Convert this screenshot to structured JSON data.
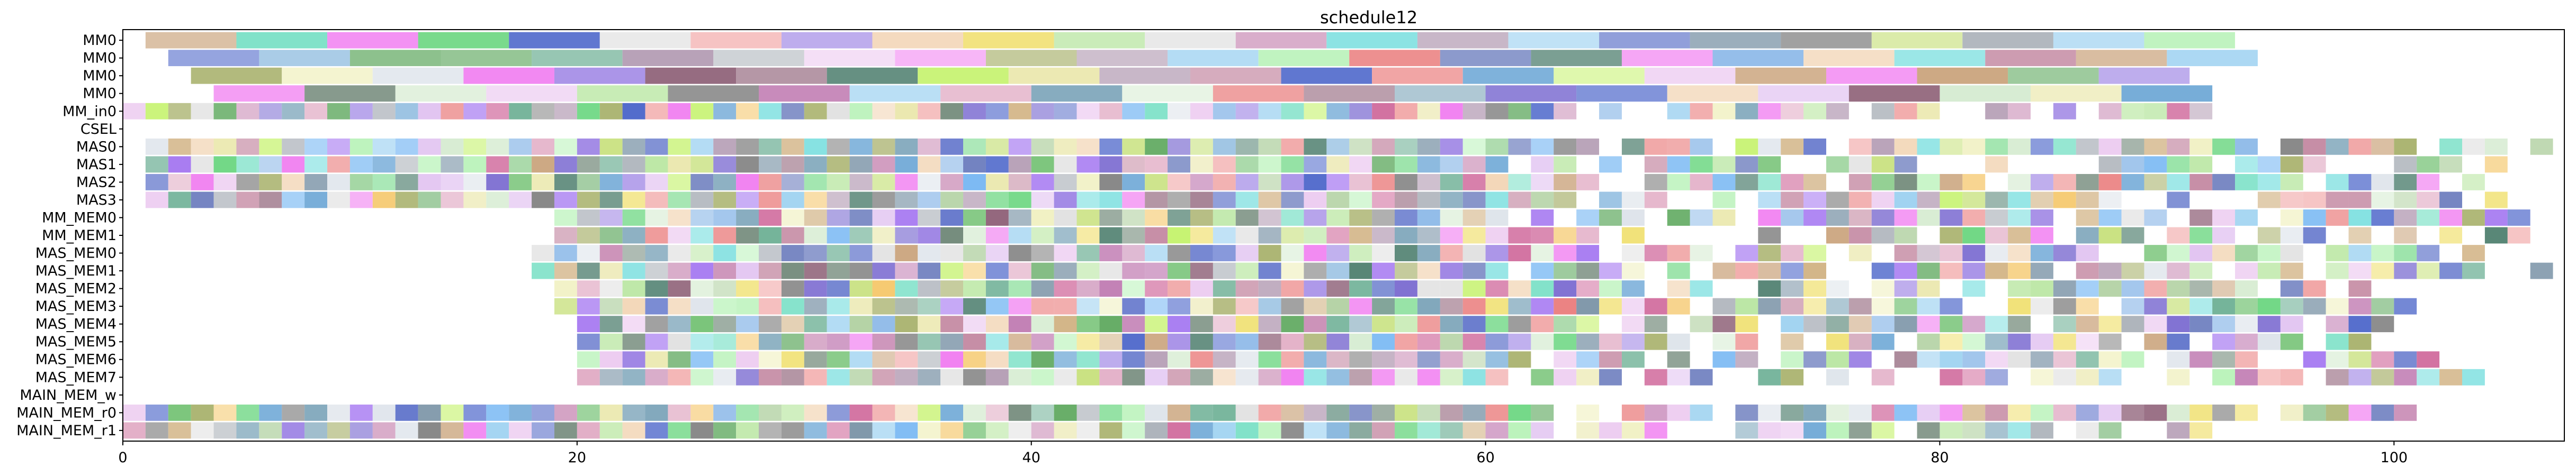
{
  "chart_data": {
    "type": "gantt",
    "title": "schedule12",
    "xlabel": "",
    "ylabel": "",
    "xlim": [
      0,
      107.5
    ],
    "xticks": [
      0,
      20,
      40,
      60,
      80,
      100
    ],
    "grid": false,
    "legend": "none",
    "rows": [
      "MM0",
      "MM0",
      "MM0",
      "MM0",
      "MM_in0",
      "CSEL",
      "MAS0",
      "MAS1",
      "MAS2",
      "MAS3",
      "MM_MEM0",
      "MM_MEM1",
      "MAS_MEM0",
      "MAS_MEM1",
      "MAS_MEM2",
      "MAS_MEM3",
      "MAS_MEM4",
      "MAS_MEM5",
      "MAS_MEM6",
      "MAS_MEM7",
      "MAIN_MEM_w",
      "MAIN_MEM_r0",
      "MAIN_MEM_r1"
    ],
    "palette": [
      "#c2859f",
      "#6a7bbd",
      "#d06a9c",
      "#6fb3f2",
      "#8d5f76",
      "#b8e6a0",
      "#7aa3b8",
      "#5d71c9",
      "#6ad680",
      "#dde3ea",
      "#f2d5b5",
      "#e9e6a8",
      "#eccaf0",
      "#c98cb5",
      "#a7b06a",
      "#c4f26a",
      "#6c8474",
      "#d5ebd0",
      "#7a93a6",
      "#6caf94",
      "#b39bb3",
      "#aab0b8",
      "#4f7f6f",
      "#e0a8c2",
      "#8db9e8",
      "#c07bb2",
      "#b8f2b8",
      "#f5c76a",
      "#9a7fe3",
      "#6fa8d6",
      "#e97a7a",
      "#7ae0c6",
      "#c9a27a",
      "#f07af0",
      "#5ea85e",
      "#4a64c9",
      "#e0e0e0",
      "#c6e07a",
      "#7a6ad0",
      "#f0a0a0",
      "#9ad0f0",
      "#d0b080",
      "#70c070",
      "#f0e070",
      "#a070f0",
      "#80e0e0",
      "#e0c0f0",
      "#b0d0a0",
      "#808080",
      "#f0f0c0"
    ],
    "segments": [
      [
        [
          1,
          5
        ],
        [
          5,
          9
        ],
        [
          9,
          13
        ],
        [
          13,
          17
        ],
        [
          17,
          21
        ],
        [
          21,
          25
        ],
        [
          25,
          29
        ],
        [
          29,
          33
        ],
        [
          33,
          37
        ],
        [
          37,
          41
        ],
        [
          41,
          45
        ],
        [
          45,
          49
        ],
        [
          49,
          53
        ],
        [
          53,
          57
        ],
        [
          57,
          61
        ],
        [
          61,
          65
        ],
        [
          65,
          69
        ],
        [
          69,
          73
        ],
        [
          73,
          77
        ],
        [
          77,
          81
        ],
        [
          81,
          85
        ],
        [
          85,
          89
        ],
        [
          89,
          93
        ]
      ],
      [
        [
          2,
          6
        ],
        [
          6,
          10
        ],
        [
          10,
          14
        ],
        [
          14,
          18
        ],
        [
          18,
          22
        ],
        [
          22,
          26
        ],
        [
          26,
          30
        ],
        [
          30,
          34
        ],
        [
          34,
          38
        ],
        [
          38,
          42
        ],
        [
          42,
          46
        ],
        [
          46,
          50
        ],
        [
          50,
          54
        ],
        [
          54,
          58
        ],
        [
          58,
          62
        ],
        [
          62,
          66
        ],
        [
          66,
          70
        ],
        [
          70,
          74
        ],
        [
          74,
          78
        ],
        [
          78,
          82
        ],
        [
          82,
          86
        ],
        [
          86,
          90
        ],
        [
          90,
          94
        ]
      ],
      [
        [
          3,
          7
        ],
        [
          7,
          11
        ],
        [
          11,
          15
        ],
        [
          15,
          19
        ],
        [
          19,
          23
        ],
        [
          23,
          27
        ],
        [
          27,
          31
        ],
        [
          31,
          35
        ],
        [
          35,
          39
        ],
        [
          39,
          43
        ],
        [
          43,
          47
        ],
        [
          47,
          51
        ],
        [
          51,
          55
        ],
        [
          55,
          59
        ],
        [
          59,
          63
        ],
        [
          63,
          67
        ],
        [
          67,
          71
        ],
        [
          71,
          75
        ],
        [
          75,
          79
        ],
        [
          79,
          83
        ],
        [
          83,
          87
        ],
        [
          87,
          91
        ]
      ],
      [
        [
          4,
          8
        ],
        [
          8,
          12
        ],
        [
          12,
          16
        ],
        [
          16,
          20
        ],
        [
          20,
          24
        ],
        [
          24,
          28
        ],
        [
          28,
          32
        ],
        [
          32,
          36
        ],
        [
          36,
          40
        ],
        [
          40,
          44
        ],
        [
          44,
          48
        ],
        [
          48,
          52
        ],
        [
          52,
          56
        ],
        [
          56,
          60
        ],
        [
          60,
          64
        ],
        [
          64,
          68
        ],
        [
          68,
          72
        ],
        [
          72,
          76
        ],
        [
          76,
          80
        ],
        [
          80,
          84
        ],
        [
          84,
          88
        ],
        [
          88,
          92
        ]
      ],
      [
        [
          0,
          93
        ],
        1
      ],
      [],
      [
        [
          1,
          94
        ],
        1,
        [
          94,
          107
        ],
        [
          95,
          96,
          97,
          98,
          99,
          100,
          102,
          103,
          104,
          106
        ]
      ],
      [
        [
          1,
          90
        ],
        1,
        [
          90,
          107
        ],
        [
          90,
          91,
          93,
          94,
          95,
          96,
          100,
          101,
          102,
          104
        ]
      ],
      [
        [
          1,
          93
        ],
        1,
        [
          93,
          107
        ],
        [
          93,
          94,
          95,
          97,
          98,
          99,
          100,
          101,
          103
        ]
      ],
      [
        [
          1,
          96
        ],
        1,
        [
          96,
          107
        ],
        [
          96,
          97,
          98,
          99,
          100,
          101,
          102,
          104
        ]
      ],
      [
        [
          19,
          107
        ],
        1
      ],
      [
        [
          19,
          96
        ],
        1,
        [
          96,
          107
        ],
        [
          96,
          98,
          100,
          102,
          104,
          105
        ]
      ],
      [
        [
          18,
          97
        ],
        1,
        [
          97,
          107
        ],
        [
          97,
          98,
          99,
          100,
          101,
          103
        ]
      ],
      [
        [
          18,
          93
        ],
        1,
        [
          93,
          107
        ],
        [
          93,
          94,
          95,
          97,
          98,
          99,
          100,
          101,
          102,
          103,
          106
        ]
      ],
      [
        [
          19,
          95
        ],
        1,
        [
          95,
          107
        ],
        [
          95,
          96,
          98
        ]
      ],
      [
        [
          19,
          96
        ],
        1,
        [
          96,
          107
        ],
        [
          96,
          97,
          98,
          99,
          100
        ]
      ],
      [
        [
          20,
          93
        ],
        1,
        [
          93,
          107
        ],
        [
          93,
          94,
          95,
          97,
          98,
          99
        ]
      ],
      [
        [
          20,
          94
        ],
        1,
        [
          94,
          107
        ],
        [
          94,
          95,
          97,
          98
        ]
      ],
      [
        [
          20,
          96
        ],
        1,
        [
          96,
          107
        ],
        [
          96,
          97,
          98,
          99,
          100,
          101
        ]
      ],
      [
        [
          20,
          98
        ],
        1,
        [
          98,
          107
        ],
        [
          98,
          99,
          100,
          101,
          102,
          103
        ]
      ],
      [],
      [
        [
          0,
          104
        ],
        1
      ],
      [
        [
          0,
          93
        ],
        1
      ]
    ]
  }
}
